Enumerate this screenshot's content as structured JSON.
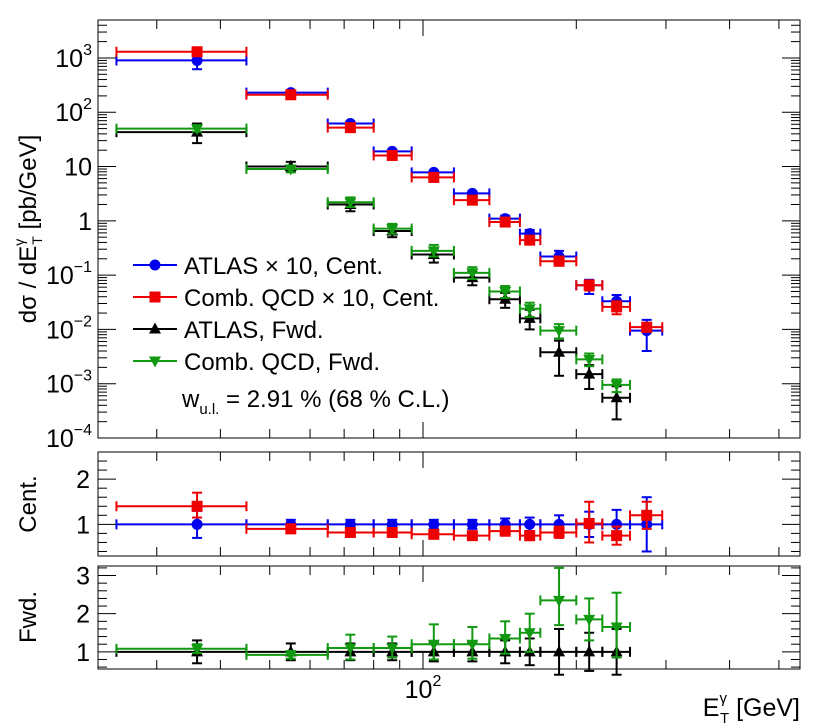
{
  "colors": {
    "atlas_cent": "#0000ee",
    "comb_cent": "#ee0000",
    "atlas_fwd": "#000000",
    "comb_fwd": "#119911",
    "frame": "#000000"
  },
  "chart_data": {
    "type": "scatter",
    "title": "",
    "x_axis": {
      "scale": "log",
      "range": [
        23,
        550
      ],
      "label_main": "E",
      "label_sup": "γ",
      "label_sub": "T",
      "label_unit": " [GeV]",
      "major_ticks": [
        {
          "value": 100,
          "base": "10",
          "exp": "2"
        }
      ]
    },
    "panels": {
      "main": {
        "y_scale": "log",
        "y_range": [
          0.0001,
          5000
        ],
        "y_label_parts": [
          "dσ / dE",
          "γ",
          "T",
          " [pb/GeV]"
        ],
        "tick_labels": [
          {
            "value": 1000,
            "base": "10",
            "exp": "3"
          },
          {
            "value": 100,
            "base": "10",
            "exp": "2"
          },
          {
            "value": 10,
            "base": "10",
            "exp": ""
          },
          {
            "value": 1,
            "base": "1",
            "exp": ""
          },
          {
            "value": 0.1,
            "base": "10",
            "exp": "−1"
          },
          {
            "value": 0.01,
            "base": "10",
            "exp": "−2"
          },
          {
            "value": 0.001,
            "base": "10",
            "exp": "−3"
          },
          {
            "value": 0.0001,
            "base": "10",
            "exp": "−4"
          }
        ]
      },
      "cent": {
        "y_range": [
          0.3,
          2.6
        ],
        "y_label": "Cent.",
        "tick_labels": [
          "1",
          "2"
        ],
        "tick_values": [
          1,
          2
        ]
      },
      "fwd": {
        "y_range": [
          0.55,
          3.25
        ],
        "y_label": "Fwd.",
        "tick_labels": [
          "1",
          "2",
          "3"
        ],
        "tick_values": [
          1,
          2,
          3
        ]
      }
    },
    "series": [
      {
        "name": "ATLAS × 10, Cent.",
        "key": "atlas_cent",
        "marker": "circle",
        "points": [
          {
            "x": 36,
            "xlo": 25,
            "xhi": 45,
            "y": 900,
            "ylo": 620,
            "yhi": 1200
          },
          {
            "x": 55,
            "xlo": 45,
            "xhi": 65,
            "y": 230,
            "ylo": 210,
            "yhi": 250
          },
          {
            "x": 72,
            "xlo": 65,
            "xhi": 80,
            "y": 62,
            "ylo": 57,
            "yhi": 67
          },
          {
            "x": 87,
            "xlo": 80,
            "xhi": 95,
            "y": 19,
            "ylo": 17.5,
            "yhi": 20.5
          },
          {
            "x": 105,
            "xlo": 95,
            "xhi": 115,
            "y": 7.8,
            "ylo": 7.1,
            "yhi": 8.5
          },
          {
            "x": 125,
            "xlo": 115,
            "xhi": 135,
            "y": 3.2,
            "ylo": 2.9,
            "yhi": 3.5
          },
          {
            "x": 145,
            "xlo": 135,
            "xhi": 155,
            "y": 1.1,
            "ylo": 0.95,
            "yhi": 1.25
          },
          {
            "x": 162,
            "xlo": 155,
            "xhi": 170,
            "y": 0.58,
            "ylo": 0.48,
            "yhi": 0.68
          },
          {
            "x": 185,
            "xlo": 170,
            "xhi": 200,
            "y": 0.22,
            "ylo": 0.17,
            "yhi": 0.28
          },
          {
            "x": 212,
            "xlo": 200,
            "xhi": 225,
            "y": 0.065,
            "ylo": 0.045,
            "yhi": 0.082
          },
          {
            "x": 240,
            "xlo": 225,
            "xhi": 255,
            "y": 0.033,
            "ylo": 0.023,
            "yhi": 0.043
          },
          {
            "x": 275,
            "xlo": 255,
            "xhi": 295,
            "y": 0.0095,
            "ylo": 0.004,
            "yhi": 0.015
          }
        ],
        "ratio": "cent",
        "ratio_points": [
          {
            "y": 1.0,
            "ylo": 0.7,
            "yhi": 1.3
          },
          {
            "y": 1.0,
            "ylo": 0.9,
            "yhi": 1.1
          },
          {
            "y": 1.0,
            "ylo": 0.9,
            "yhi": 1.1
          },
          {
            "y": 1.0,
            "ylo": 0.9,
            "yhi": 1.1
          },
          {
            "y": 1.0,
            "ylo": 0.9,
            "yhi": 1.1
          },
          {
            "y": 1.0,
            "ylo": 0.9,
            "yhi": 1.1
          },
          {
            "y": 1.0,
            "ylo": 0.87,
            "yhi": 1.13
          },
          {
            "y": 1.0,
            "ylo": 0.85,
            "yhi": 1.15
          },
          {
            "y": 1.0,
            "ylo": 0.8,
            "yhi": 1.2
          },
          {
            "y": 1.0,
            "ylo": 0.72,
            "yhi": 1.28
          },
          {
            "y": 1.0,
            "ylo": 0.68,
            "yhi": 1.32
          },
          {
            "y": 1.0,
            "ylo": 0.4,
            "yhi": 1.6
          }
        ]
      },
      {
        "name": "Comb. QCD × 10, Cent.",
        "key": "comb_cent",
        "marker": "square",
        "points": [
          {
            "x": 36,
            "xlo": 25,
            "xhi": 45,
            "y": 1300,
            "ylo": 1150,
            "yhi": 1450
          },
          {
            "x": 55,
            "xlo": 45,
            "xhi": 65,
            "y": 210,
            "ylo": 195,
            "yhi": 225
          },
          {
            "x": 72,
            "xlo": 65,
            "xhi": 80,
            "y": 52,
            "ylo": 47,
            "yhi": 57
          },
          {
            "x": 87,
            "xlo": 80,
            "xhi": 95,
            "y": 16,
            "ylo": 14.5,
            "yhi": 17.5
          },
          {
            "x": 105,
            "xlo": 95,
            "xhi": 115,
            "y": 6.3,
            "ylo": 5.6,
            "yhi": 7.0
          },
          {
            "x": 125,
            "xlo": 115,
            "xhi": 135,
            "y": 2.4,
            "ylo": 2.1,
            "yhi": 2.7
          },
          {
            "x": 145,
            "xlo": 135,
            "xhi": 155,
            "y": 0.95,
            "ylo": 0.82,
            "yhi": 1.08
          },
          {
            "x": 162,
            "xlo": 155,
            "xhi": 170,
            "y": 0.44,
            "ylo": 0.37,
            "yhi": 0.51
          },
          {
            "x": 185,
            "xlo": 170,
            "xhi": 200,
            "y": 0.18,
            "ylo": 0.15,
            "yhi": 0.22
          },
          {
            "x": 212,
            "xlo": 200,
            "xhi": 225,
            "y": 0.065,
            "ylo": 0.052,
            "yhi": 0.08
          },
          {
            "x": 240,
            "xlo": 225,
            "xhi": 255,
            "y": 0.026,
            "ylo": 0.019,
            "yhi": 0.033
          },
          {
            "x": 275,
            "xlo": 255,
            "xhi": 295,
            "y": 0.011,
            "ylo": 0.009,
            "yhi": 0.013
          }
        ],
        "ratio": "cent",
        "ratio_points": [
          {
            "y": 1.4,
            "ylo": 1.15,
            "yhi": 1.7
          },
          {
            "y": 0.9,
            "ylo": 0.82,
            "yhi": 1.0
          },
          {
            "y": 0.82,
            "ylo": 0.74,
            "yhi": 0.9
          },
          {
            "y": 0.82,
            "ylo": 0.75,
            "yhi": 0.9
          },
          {
            "y": 0.78,
            "ylo": 0.7,
            "yhi": 0.85
          },
          {
            "y": 0.75,
            "ylo": 0.67,
            "yhi": 0.83
          },
          {
            "y": 0.85,
            "ylo": 0.75,
            "yhi": 0.95
          },
          {
            "y": 0.75,
            "ylo": 0.65,
            "yhi": 0.85
          },
          {
            "y": 0.82,
            "ylo": 0.7,
            "yhi": 0.95
          },
          {
            "y": 1.02,
            "ylo": 0.6,
            "yhi": 1.5
          },
          {
            "y": 0.75,
            "ylo": 0.55,
            "yhi": 0.95
          },
          {
            "y": 1.2,
            "ylo": 0.9,
            "yhi": 1.5
          }
        ]
      },
      {
        "name": "ATLAS, Fwd.",
        "key": "atlas_fwd",
        "marker": "triangle-up",
        "points": [
          {
            "x": 36,
            "xlo": 25,
            "xhi": 45,
            "y": 43,
            "ylo": 27,
            "yhi": 62
          },
          {
            "x": 55,
            "xlo": 45,
            "xhi": 65,
            "y": 10,
            "ylo": 8.0,
            "yhi": 12.2
          },
          {
            "x": 72,
            "xlo": 65,
            "xhi": 80,
            "y": 2.0,
            "ylo": 1.5,
            "yhi": 2.5
          },
          {
            "x": 87,
            "xlo": 80,
            "xhi": 95,
            "y": 0.65,
            "ylo": 0.5,
            "yhi": 0.8
          },
          {
            "x": 105,
            "xlo": 95,
            "xhi": 115,
            "y": 0.24,
            "ylo": 0.17,
            "yhi": 0.31
          },
          {
            "x": 125,
            "xlo": 115,
            "xhi": 135,
            "y": 0.09,
            "ylo": 0.065,
            "yhi": 0.115
          },
          {
            "x": 145,
            "xlo": 135,
            "xhi": 155,
            "y": 0.036,
            "ylo": 0.025,
            "yhi": 0.047
          },
          {
            "x": 162,
            "xlo": 155,
            "xhi": 170,
            "y": 0.016,
            "ylo": 0.01,
            "yhi": 0.023
          },
          {
            "x": 185,
            "xlo": 170,
            "xhi": 200,
            "y": 0.0038,
            "ylo": 0.0014,
            "yhi": 0.0062
          },
          {
            "x": 212,
            "xlo": 200,
            "xhi": 225,
            "y": 0.0015,
            "ylo": 0.0008,
            "yhi": 0.0022
          },
          {
            "x": 240,
            "xlo": 225,
            "xhi": 255,
            "y": 0.00055,
            "ylo": 0.00022,
            "yhi": 0.0009
          }
        ],
        "ratio": "fwd",
        "ratio_points": [
          {
            "y": 1.0,
            "ylo": 0.7,
            "yhi": 1.3
          },
          {
            "y": 1.0,
            "ylo": 0.78,
            "yhi": 1.22
          },
          {
            "y": 1.0,
            "ylo": 0.78,
            "yhi": 1.22
          },
          {
            "y": 1.0,
            "ylo": 0.78,
            "yhi": 1.22
          },
          {
            "y": 1.0,
            "ylo": 0.75,
            "yhi": 1.25
          },
          {
            "y": 1.0,
            "ylo": 0.75,
            "yhi": 1.25
          },
          {
            "y": 1.0,
            "ylo": 0.7,
            "yhi": 1.3
          },
          {
            "y": 1.0,
            "ylo": 0.65,
            "yhi": 1.35
          },
          {
            "y": 1.0,
            "ylo": 0.4,
            "yhi": 1.6
          },
          {
            "y": 1.0,
            "ylo": 0.5,
            "yhi": 1.5
          },
          {
            "y": 1.0,
            "ylo": 0.4,
            "yhi": 1.6
          }
        ]
      },
      {
        "name": "Comb. QCD, Fwd.",
        "key": "comb_fwd",
        "marker": "triangle-down",
        "points": [
          {
            "x": 36,
            "xlo": 25,
            "xhi": 45,
            "y": 50,
            "ylo": 44,
            "yhi": 56
          },
          {
            "x": 55,
            "xlo": 45,
            "xhi": 65,
            "y": 9.0,
            "ylo": 7.8,
            "yhi": 10.2
          },
          {
            "x": 72,
            "xlo": 65,
            "xhi": 80,
            "y": 2.2,
            "ylo": 1.8,
            "yhi": 2.7
          },
          {
            "x": 87,
            "xlo": 80,
            "xhi": 95,
            "y": 0.72,
            "ylo": 0.58,
            "yhi": 0.88
          },
          {
            "x": 105,
            "xlo": 95,
            "xhi": 115,
            "y": 0.28,
            "ylo": 0.22,
            "yhi": 0.36
          },
          {
            "x": 125,
            "xlo": 115,
            "xhi": 135,
            "y": 0.11,
            "ylo": 0.085,
            "yhi": 0.14
          },
          {
            "x": 145,
            "xlo": 135,
            "xhi": 155,
            "y": 0.05,
            "ylo": 0.038,
            "yhi": 0.063
          },
          {
            "x": 162,
            "xlo": 155,
            "xhi": 170,
            "y": 0.024,
            "ylo": 0.017,
            "yhi": 0.031
          },
          {
            "x": 185,
            "xlo": 170,
            "xhi": 200,
            "y": 0.0095,
            "ylo": 0.0068,
            "yhi": 0.0125
          },
          {
            "x": 212,
            "xlo": 200,
            "xhi": 225,
            "y": 0.0028,
            "ylo": 0.0021,
            "yhi": 0.0036
          },
          {
            "x": 240,
            "xlo": 225,
            "xhi": 255,
            "y": 0.00095,
            "ylo": 0.0007,
            "yhi": 0.0012
          }
        ],
        "ratio": "fwd",
        "ratio_points": [
          {
            "y": 1.08,
            "ylo": 0.97,
            "yhi": 1.2
          },
          {
            "y": 0.92,
            "ylo": 0.82,
            "yhi": 1.02
          },
          {
            "y": 1.1,
            "ylo": 0.8,
            "yhi": 1.45
          },
          {
            "y": 1.1,
            "ylo": 0.85,
            "yhi": 1.4
          },
          {
            "y": 1.2,
            "ylo": 0.8,
            "yhi": 1.72
          },
          {
            "y": 1.2,
            "ylo": 0.82,
            "yhi": 1.65
          },
          {
            "y": 1.35,
            "ylo": 0.95,
            "yhi": 1.8
          },
          {
            "y": 1.5,
            "ylo": 1.0,
            "yhi": 2.0
          },
          {
            "y": 2.35,
            "ylo": 1.7,
            "yhi": 3.2
          },
          {
            "y": 1.85,
            "ylo": 1.3,
            "yhi": 2.4
          },
          {
            "y": 1.65,
            "ylo": 0.85,
            "yhi": 2.55
          }
        ]
      }
    ],
    "legend": {
      "placement": "lower-left",
      "annotation_prefix": "w",
      "annotation_sub": "u.l.",
      "annotation_rest": " = 2.91 % (68 % C.L.)"
    }
  }
}
